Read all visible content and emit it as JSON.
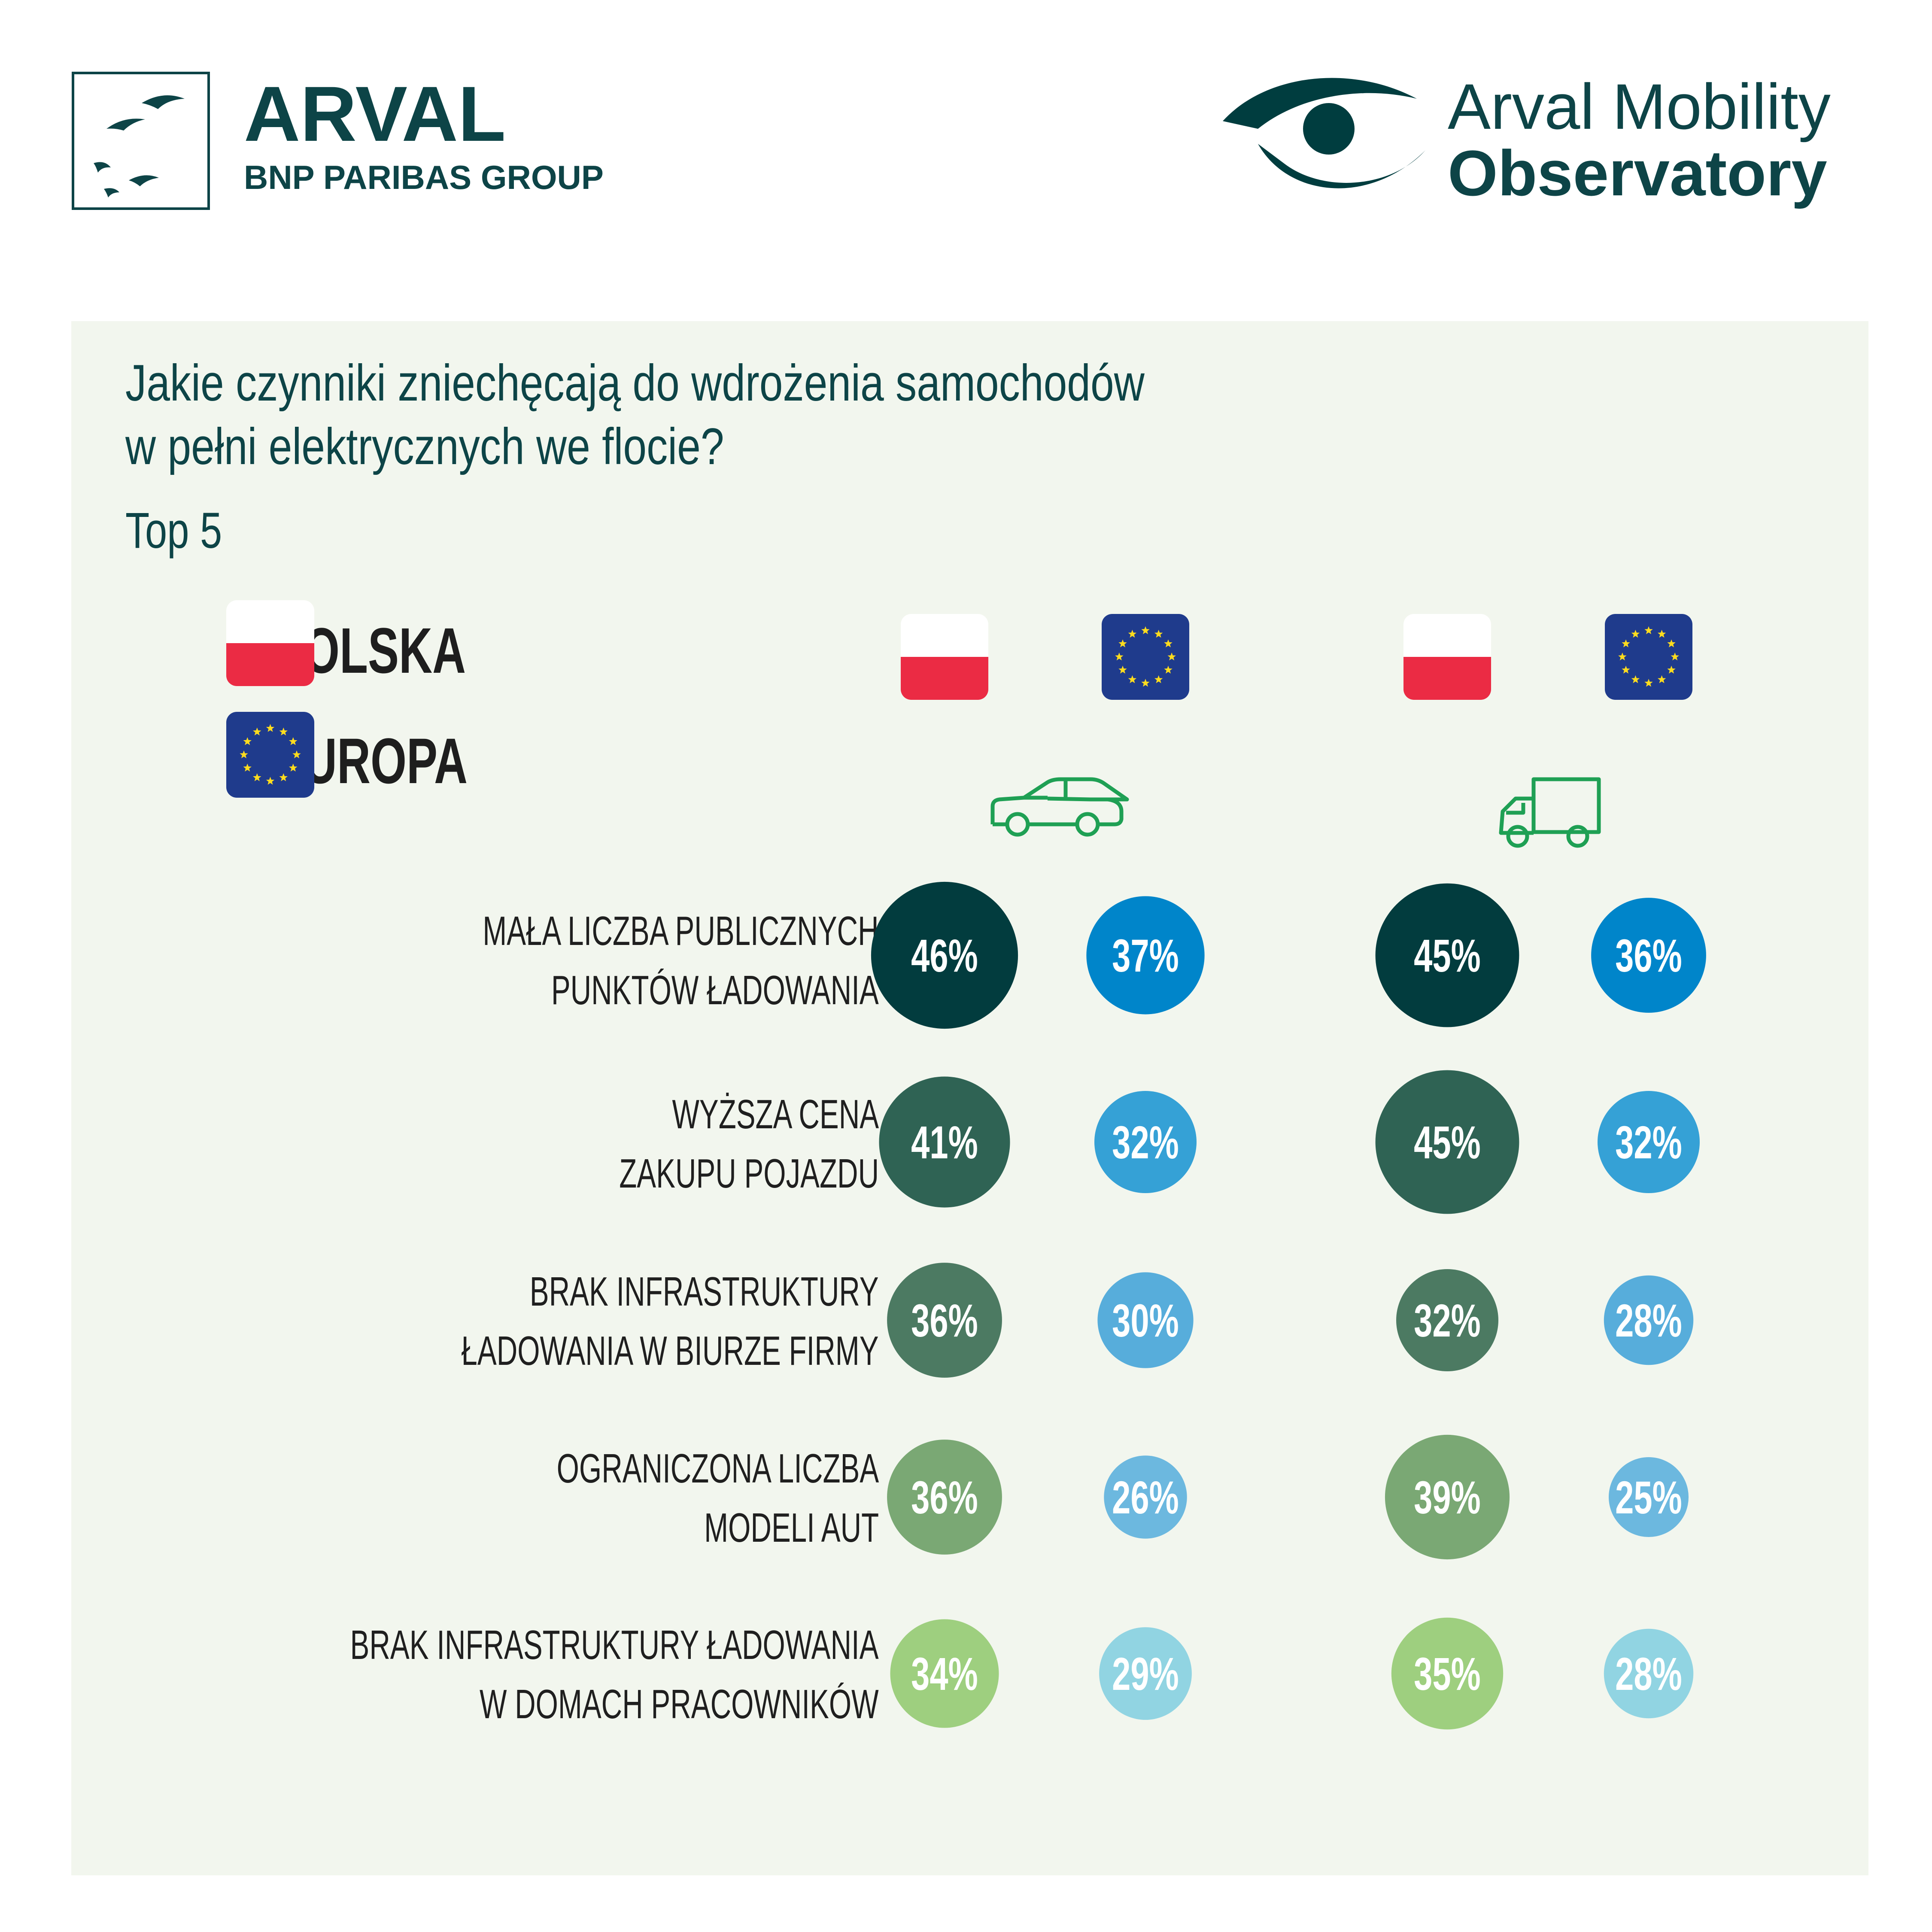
{
  "brand": {
    "arval_name": "ARVAL",
    "arval_group": "BNP PARIBAS GROUP",
    "observatory_line1": "Arval Mobility",
    "observatory_line2": "Observatory"
  },
  "legend": [
    {
      "label": "POLSKA",
      "flag": "poland"
    },
    {
      "label": "EUROPA",
      "flag": "eu"
    }
  ],
  "vehicle_icons": [
    "car-icon",
    "van-icon"
  ],
  "colors": {
    "panel_bg": "#f2f6ee",
    "title": "#0d4447",
    "brand_dark": "#003d3f",
    "poland_red": "#eb2b44",
    "eu_blue": "#1f3b8c",
    "eu_star": "#ffdc1e",
    "icon_green": "#1fa054",
    "poland_rows": [
      "#023c3e",
      "#2f6354",
      "#4c7a62",
      "#7aa874",
      "#9ecf7f"
    ],
    "europe_rows": [
      "#0085ca",
      "#35a1d6",
      "#57addb",
      "#6cb8df",
      "#91d4e2"
    ]
  },
  "chart_data": {
    "type": "table",
    "title": "Jakie czynniki zniechęcają do wdrożenia samochodów w pełni elektrycznych we flocie?",
    "title_lines": [
      "Jakie czynniki zniechęcają do wdrożenia samochodów",
      "w pełni elektrycznych we flocie?"
    ],
    "subtitle": "Top 5",
    "rows": [
      {
        "label_lines": [
          "MAŁA LICZBA PUBLICZNYCH",
          "PUNKTÓW ŁADOWANIA"
        ]
      },
      {
        "label_lines": [
          "WYŻSZA CENA",
          "ZAKUPU POJAZDU"
        ]
      },
      {
        "label_lines": [
          "BRAK INFRASTRUKTURY",
          "ŁADOWANIA W BIURZE FIRMY"
        ]
      },
      {
        "label_lines": [
          "OGRANICZONA LICZBA",
          "MODELI AUT"
        ]
      },
      {
        "label_lines": [
          "BRAK INFRASTRUKTURY ŁADOWANIA",
          "W DOMACH PRACOWNIKÓW"
        ]
      }
    ],
    "columns": [
      {
        "vehicle": "car",
        "region": "poland",
        "values": [
          46,
          41,
          36,
          36,
          34
        ]
      },
      {
        "vehicle": "car",
        "region": "europe",
        "values": [
          37,
          32,
          30,
          26,
          29
        ]
      },
      {
        "vehicle": "van",
        "region": "poland",
        "values": [
          45,
          45,
          32,
          39,
          35
        ]
      },
      {
        "vehicle": "van",
        "region": "europe",
        "values": [
          36,
          32,
          28,
          25,
          28
        ]
      }
    ],
    "unit": "%"
  }
}
